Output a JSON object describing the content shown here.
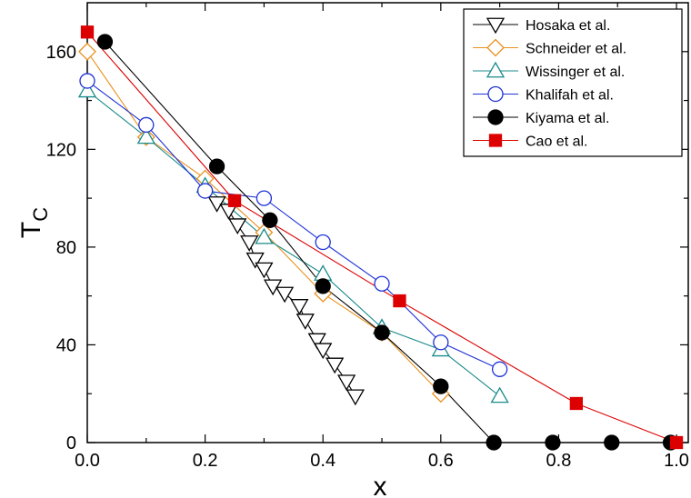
{
  "chart_data": {
    "type": "scatter",
    "title": "",
    "xlabel": "x",
    "ylabel_main": "T",
    "ylabel_sub": "C",
    "xlim": [
      0.0,
      1.02
    ],
    "ylim": [
      0,
      180
    ],
    "xticks": [
      "0.0",
      "0.2",
      "0.4",
      "0.6",
      "0.8",
      "1.0"
    ],
    "yticks": [
      "0",
      "40",
      "80",
      "120",
      "160"
    ],
    "legend_position": "top-right",
    "series": [
      {
        "name": "Hosaka et al.",
        "marker": "triangle-down",
        "color": "#000000",
        "fill": "none",
        "x": [
          0.22,
          0.24,
          0.255,
          0.275,
          0.285,
          0.3,
          0.315,
          0.335,
          0.36,
          0.37,
          0.39,
          0.4,
          0.42,
          0.44,
          0.455
        ],
        "y": [
          98,
          95,
          89,
          82,
          75,
          71,
          64,
          61,
          56,
          50,
          42,
          38,
          32,
          25,
          19
        ]
      },
      {
        "name": "Schneider et al.",
        "marker": "diamond",
        "color": "#E8901E",
        "fill": "none",
        "x": [
          0.0,
          0.1,
          0.2,
          0.3,
          0.4,
          0.5,
          0.6
        ],
        "y": [
          160,
          125,
          108,
          86,
          61,
          45,
          20
        ]
      },
      {
        "name": "Wissinger et al.",
        "marker": "triangle-up",
        "color": "#1B8A8A",
        "fill": "none",
        "x": [
          0.0,
          0.1,
          0.2,
          0.3,
          0.4,
          0.5,
          0.6,
          0.7
        ],
        "y": [
          144,
          125,
          105,
          84,
          69,
          47,
          38,
          19
        ]
      },
      {
        "name": "Khalifah et al.",
        "marker": "circle",
        "color": "#1F33D6",
        "fill": "none",
        "x": [
          0.0,
          0.1,
          0.2,
          0.3,
          0.4,
          0.5,
          0.6,
          0.7
        ],
        "y": [
          148,
          130,
          103,
          100,
          82,
          65,
          41,
          30
        ]
      },
      {
        "name": "Kiyama et al.",
        "marker": "circle",
        "color": "#000000",
        "fill": "#000000",
        "x": [
          0.03,
          0.22,
          0.31,
          0.4,
          0.5,
          0.6,
          0.69,
          0.79,
          0.89,
          0.99
        ],
        "y": [
          164,
          113,
          91,
          64,
          45,
          23,
          0,
          0,
          0,
          0
        ]
      },
      {
        "name": "Cao et al.",
        "marker": "square",
        "color": "#DD0000",
        "fill": "#DD0000",
        "x": [
          0.0,
          0.25,
          0.53,
          0.83,
          1.0
        ],
        "y": [
          168,
          99,
          58,
          16,
          0
        ]
      }
    ]
  }
}
